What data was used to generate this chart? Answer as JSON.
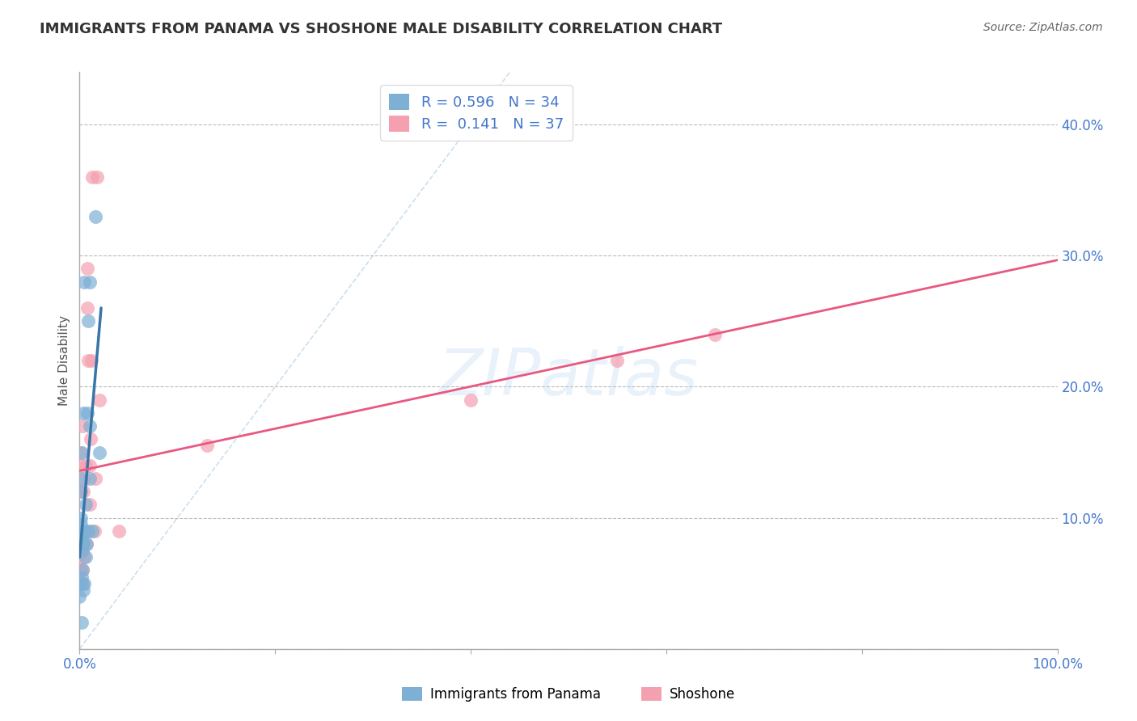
{
  "title": "IMMIGRANTS FROM PANAMA VS SHOSHONE MALE DISABILITY CORRELATION CHART",
  "source": "Source: ZipAtlas.com",
  "xlabel_label": "Immigrants from Panama",
  "ylabel": "Male Disability",
  "R_panama": 0.596,
  "N_panama": 34,
  "R_shoshone": 0.141,
  "N_shoshone": 37,
  "color_panama": "#7EB0D5",
  "color_shoshone": "#F4A0B0",
  "color_panama_line": "#3875A8",
  "color_shoshone_line": "#E85880",
  "panama_x": [
    0.0,
    0.0,
    0.001,
    0.001,
    0.001,
    0.001,
    0.001,
    0.002,
    0.002,
    0.002,
    0.002,
    0.003,
    0.003,
    0.003,
    0.003,
    0.004,
    0.004,
    0.004,
    0.004,
    0.005,
    0.005,
    0.005,
    0.006,
    0.006,
    0.007,
    0.008,
    0.009,
    0.009,
    0.01,
    0.01,
    0.01,
    0.013,
    0.016,
    0.02
  ],
  "panama_y": [
    0.04,
    0.05,
    0.08,
    0.095,
    0.1,
    0.12,
    0.13,
    0.02,
    0.055,
    0.085,
    0.15,
    0.05,
    0.06,
    0.075,
    0.08,
    0.045,
    0.08,
    0.09,
    0.18,
    0.05,
    0.09,
    0.28,
    0.07,
    0.11,
    0.08,
    0.18,
    0.09,
    0.25,
    0.13,
    0.17,
    0.28,
    0.09,
    0.33,
    0.15
  ],
  "shoshone_x": [
    0.0,
    0.0,
    0.0,
    0.001,
    0.001,
    0.001,
    0.001,
    0.002,
    0.002,
    0.002,
    0.003,
    0.003,
    0.003,
    0.004,
    0.004,
    0.005,
    0.005,
    0.006,
    0.006,
    0.007,
    0.008,
    0.008,
    0.009,
    0.01,
    0.01,
    0.011,
    0.012,
    0.013,
    0.015,
    0.016,
    0.018,
    0.02,
    0.04,
    0.13,
    0.4,
    0.55,
    0.65
  ],
  "shoshone_y": [
    0.05,
    0.07,
    0.09,
    0.06,
    0.08,
    0.12,
    0.15,
    0.05,
    0.08,
    0.14,
    0.06,
    0.09,
    0.17,
    0.08,
    0.12,
    0.07,
    0.13,
    0.09,
    0.14,
    0.08,
    0.26,
    0.29,
    0.22,
    0.11,
    0.14,
    0.16,
    0.22,
    0.36,
    0.09,
    0.13,
    0.36,
    0.19,
    0.09,
    0.155,
    0.19,
    0.22,
    0.24
  ],
  "xlim": [
    0.0,
    1.0
  ],
  "ylim": [
    0.0,
    0.44
  ],
  "yticks": [
    0.0,
    0.1,
    0.2,
    0.3,
    0.4
  ],
  "ytick_labels": [
    "",
    "10.0%",
    "20.0%",
    "30.0%",
    "40.0%"
  ],
  "xticks": [
    0.0,
    0.2,
    0.4,
    0.6,
    0.8,
    1.0
  ],
  "xtick_labels": [
    "0.0%",
    "",
    "",
    "",
    "",
    "100.0%"
  ],
  "grid_color": "#BBBBBB",
  "background_color": "#FFFFFF",
  "axis_color": "#AAAAAA",
  "tick_label_color": "#4477CC",
  "legend_text_color": "#4477CC",
  "title_color": "#333333",
  "source_color": "#666666",
  "ylabel_color": "#555555"
}
